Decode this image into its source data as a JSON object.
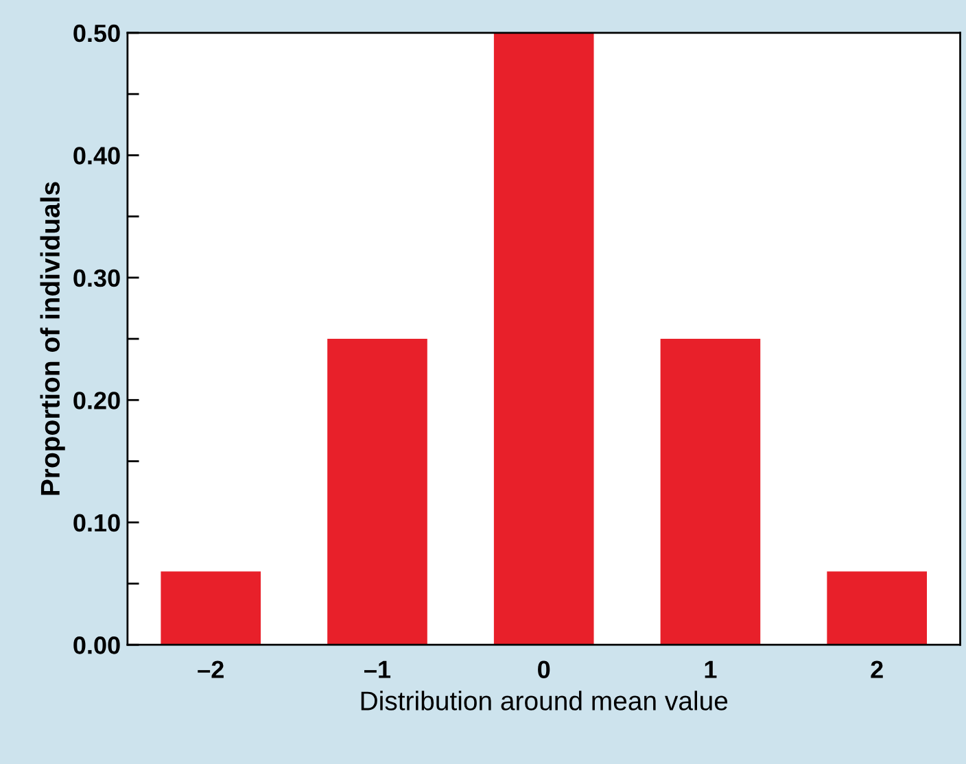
{
  "chart_data": {
    "type": "bar",
    "xlabel": "Distribution around mean value",
    "ylabel": "Proportion of individuals",
    "categories": [
      "–2",
      "–1",
      "0",
      "1",
      "2"
    ],
    "values": [
      0.06,
      0.25,
      0.5,
      0.25,
      0.06
    ],
    "color": "#e8202a",
    "ylim": [
      0,
      0.5
    ],
    "yticks": [
      {
        "value": 0,
        "label": "0.00"
      },
      {
        "value": 0.05,
        "label": null
      },
      {
        "value": 0.1,
        "label": "0.10"
      },
      {
        "value": 0.15,
        "label": null
      },
      {
        "value": 0.2,
        "label": "0.20"
      },
      {
        "value": 0.25,
        "label": null
      },
      {
        "value": 0.3,
        "label": "0.30"
      },
      {
        "value": 0.35,
        "label": null
      },
      {
        "value": 0.4,
        "label": "0.40"
      },
      {
        "value": 0.45,
        "label": null
      },
      {
        "value": 0.5,
        "label": "0.50"
      }
    ],
    "grid": false
  }
}
